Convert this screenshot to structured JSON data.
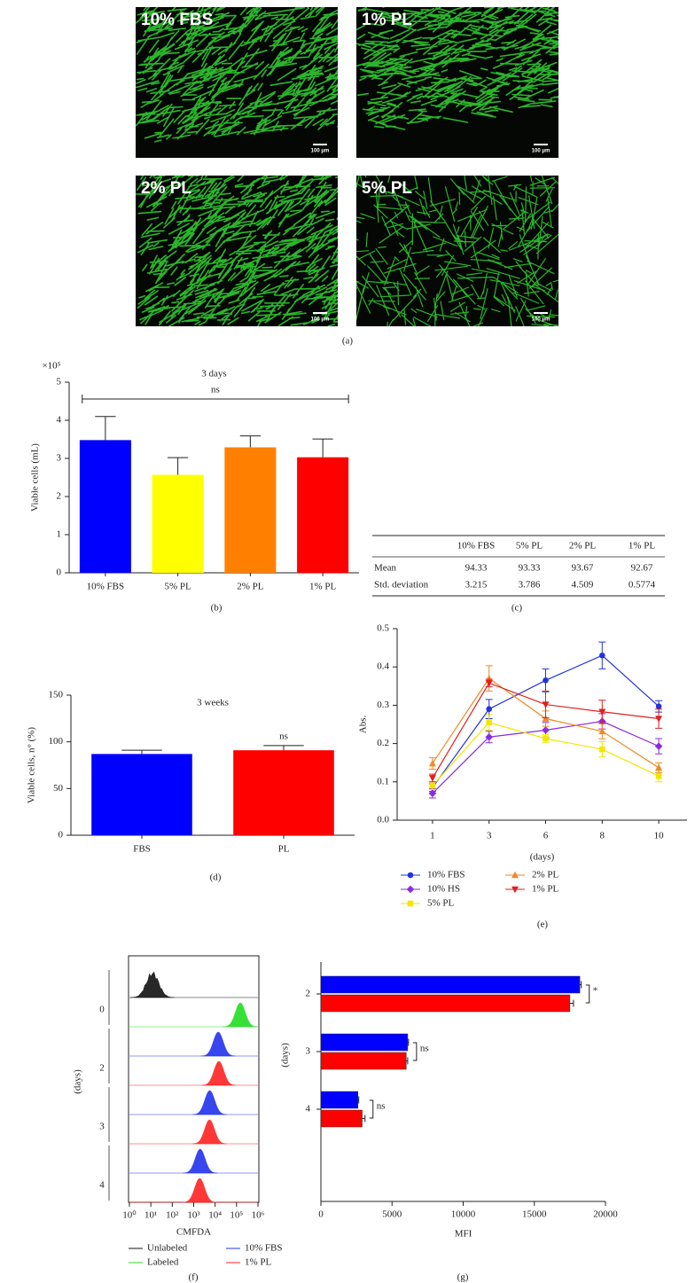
{
  "panel_a": {
    "images": [
      {
        "label": "10% FBS",
        "scale_bar": "100 μm"
      },
      {
        "label": "1% PL",
        "scale_bar": "100 μm"
      },
      {
        "label": "2% PL",
        "scale_bar": "100 μm"
      },
      {
        "label": "5% PL",
        "scale_bar": "100 μm"
      }
    ],
    "caption": "(a)"
  },
  "table_c": {
    "header": [
      "10% FBS",
      "5% PL",
      "2% PL",
      "1% PL"
    ],
    "rows": [
      [
        "Mean",
        94.33,
        93.33,
        93.67,
        92.67
      ],
      [
        "Std. deviation",
        3.215,
        3.786,
        4.509,
        0.5774
      ]
    ],
    "caption": "(c)"
  },
  "chart_data": [
    {
      "type": "bar",
      "title": "3 days",
      "y_label": "Viable cells (mL)",
      "y_multiplier": "×10⁵",
      "categories": [
        "10% FBS",
        "5% PL",
        "2% PL",
        "1% PL"
      ],
      "values": [
        3.48,
        2.57,
        3.29,
        3.03
      ],
      "errors": [
        0.62,
        0.45,
        0.3,
        0.48
      ],
      "colors": [
        "#0000ff",
        "#ffff00",
        "#ff8000",
        "#ff0000"
      ],
      "ylim": [
        0,
        5
      ],
      "yticks": [
        0,
        1,
        2,
        3,
        4,
        5
      ],
      "bracket_label": "ns",
      "caption": "(b)"
    },
    {
      "type": "bar",
      "title": "3 weeks",
      "y_label": "Viable cells, n° (%)",
      "categories": [
        "FBS",
        "PL"
      ],
      "values": [
        87,
        91
      ],
      "errors": [
        4,
        5
      ],
      "colors": [
        "#0000ff",
        "#ff0000"
      ],
      "value_annotations": [
        null,
        "ns"
      ],
      "ylim": [
        0,
        150
      ],
      "yticks": [
        0,
        50,
        100,
        150
      ],
      "caption": "(d)"
    },
    {
      "type": "line",
      "y_label": "Abs.",
      "x_label": "(days)",
      "categories": [
        "1",
        "3",
        "6",
        "8",
        "10"
      ],
      "series": [
        {
          "name": "10% FBS",
          "color": "#2233dd",
          "marker": "circle",
          "values": [
            0.085,
            0.29,
            0.365,
            0.43,
            0.297
          ],
          "errors": [
            0.01,
            0.025,
            0.03,
            0.035,
            0.015
          ]
        },
        {
          "name": "10% HS",
          "color": "#8a2be2",
          "marker": "diamond",
          "values": [
            0.07,
            0.217,
            0.235,
            0.258,
            0.193
          ],
          "errors": [
            0.012,
            0.015,
            0.02,
            0.02,
            0.02
          ]
        },
        {
          "name": "5% PL",
          "color": "#f2e600",
          "marker": "square",
          "values": [
            0.09,
            0.255,
            0.213,
            0.185,
            0.115
          ],
          "errors": [
            0.01,
            0.02,
            0.01,
            0.02,
            0.015
          ]
        },
        {
          "name": "2% PL",
          "color": "#f08a24",
          "marker": "triangle-up",
          "values": [
            0.148,
            0.37,
            0.265,
            0.232,
            0.137
          ],
          "errors": [
            0.015,
            0.033,
            0.02,
            0.02,
            0.013
          ]
        },
        {
          "name": "1% PL",
          "color": "#e0201f",
          "marker": "triangle-down",
          "values": [
            0.11,
            0.358,
            0.302,
            0.283,
            0.265
          ],
          "errors": [
            0.01,
            0.01,
            0.035,
            0.03,
            0.025
          ]
        }
      ],
      "ylim": [
        0,
        0.5
      ],
      "yticks": [
        {
          "value": 0,
          "label": "0.0"
        },
        0.1,
        0.2,
        0.3,
        0.4,
        0.5
      ],
      "caption": "(e)"
    },
    {
      "type": "density",
      "x_label": "CMFDA",
      "y_label": "(days)",
      "log_x": true,
      "categories": [
        "0",
        "2",
        "3",
        "4"
      ],
      "series": [
        {
          "name": "Unlabeled",
          "color": "#111111",
          "values": [
            12,
            null,
            null,
            null
          ]
        },
        {
          "name": "Labeled",
          "color": "#22dd22",
          "values": [
            150000,
            null,
            null,
            null
          ]
        },
        {
          "name": "10% FBS",
          "color": "#2233ee",
          "values": [
            null,
            14000,
            5600,
            2000
          ]
        },
        {
          "name": "1% PL",
          "color": "#ff2222",
          "values": [
            null,
            15000,
            5500,
            1900
          ]
        }
      ],
      "xlim": [
        1,
        1000000
      ],
      "xticks": [
        {
          "value": 1,
          "label": "10⁰"
        },
        {
          "value": 10,
          "label": "10¹"
        },
        {
          "value": 100,
          "label": "10²"
        },
        {
          "value": 1000,
          "label": "10³"
        },
        {
          "value": 10000,
          "label": "10⁴"
        },
        {
          "value": 100000,
          "label": "10⁵"
        },
        {
          "value": 1000000,
          "label": "10⁶"
        }
      ],
      "caption": "(f)"
    },
    {
      "type": "hbar",
      "x_label": "MFI",
      "y_label": "(days)",
      "categories": [
        "2",
        "3",
        "4"
      ],
      "series": [
        {
          "name": "10% FBS",
          "color": "#0000ff",
          "values": [
            18200,
            6100,
            2600
          ],
          "errors": [
            100,
            60,
            60
          ]
        },
        {
          "name": "1% PL",
          "color": "#ff0000",
          "values": [
            17500,
            6000,
            2900
          ],
          "errors": [
            250,
            100,
            200
          ]
        }
      ],
      "annotations": [
        "*",
        "ns",
        "ns"
      ],
      "xlim": [
        0,
        20000
      ],
      "xticks": [
        0,
        5000,
        10000,
        15000,
        20000
      ],
      "caption": "(g)"
    }
  ]
}
